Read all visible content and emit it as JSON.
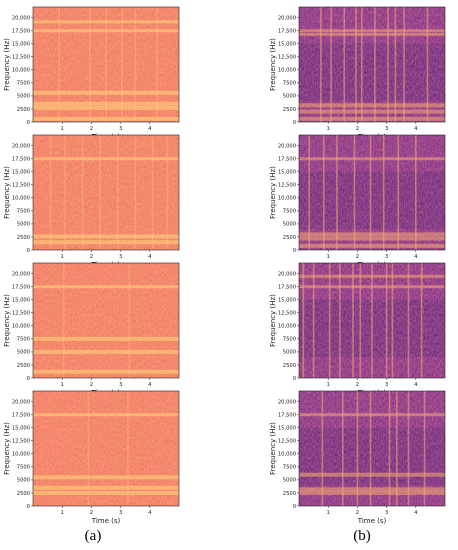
{
  "chart_data": [
    {
      "type": "heatmap",
      "panel": "a1",
      "style": "orange",
      "xlabel": "Time (s)",
      "ylabel": "Frequency (Hz)",
      "x_ticks": [
        1,
        2,
        3,
        4
      ],
      "y_ticks": [
        0,
        2500,
        5000,
        7500,
        10000,
        12500,
        15000,
        17500,
        20000
      ],
      "x_tick_labels": [
        "1",
        "2",
        "3",
        "4"
      ],
      "y_tick_labels": [
        "0",
        "2500",
        "5000",
        "7500",
        "10,000",
        "12,500",
        "15,000",
        "17,500",
        "20,000"
      ],
      "xlim": [
        0,
        5
      ],
      "ylim": [
        0,
        22050
      ],
      "bright_bands_hz": [
        600,
        2700,
        3500,
        5600,
        17500,
        19200
      ],
      "vertical_streaks_s": [
        0.9,
        1.95,
        2.5,
        3.05,
        3.5,
        4.25
      ]
    },
    {
      "type": "heatmap",
      "panel": "b1",
      "style": "purple",
      "xlabel": "Time (s)",
      "ylabel": "Frequency (Hz)",
      "x_ticks": [
        1,
        2,
        3,
        4
      ],
      "y_ticks": [
        0,
        2500,
        5000,
        7500,
        10000,
        12500,
        15000,
        17500,
        20000
      ],
      "x_tick_labels": [
        "1",
        "2",
        "3",
        "4"
      ],
      "y_tick_labels": [
        "0",
        "2500",
        "5000",
        "7500",
        "10,000",
        "12,500",
        "15,000",
        "17,500",
        "20,000"
      ],
      "xlim": [
        0,
        5
      ],
      "ylim": [
        0,
        22050
      ],
      "bright_bands_hz": [
        600,
        2000,
        3200,
        16800,
        17500
      ],
      "vertical_streaks_s": [
        0.75,
        1.1,
        1.55,
        1.95,
        2.15,
        2.6,
        3.05,
        3.3,
        3.6,
        4.4
      ]
    },
    {
      "type": "heatmap",
      "panel": "a2",
      "style": "orange",
      "xlabel": "Time (s)",
      "ylabel": "Frequency (Hz)",
      "x_ticks": [
        1,
        2,
        3,
        4
      ],
      "y_ticks": [
        0,
        2500,
        5000,
        7500,
        10000,
        12500,
        15000,
        17500,
        20000
      ],
      "x_tick_labels": [
        "1",
        "2",
        "3",
        "4"
      ],
      "y_tick_labels": [
        "0",
        "2500",
        "5000",
        "7500",
        "10,000",
        "12,500",
        "15,000",
        "17,500",
        "20,000"
      ],
      "xlim": [
        0,
        5
      ],
      "ylim": [
        0,
        22050
      ],
      "bright_bands_hz": [
        1500,
        2600,
        17500
      ],
      "vertical_streaks_s": [
        0.6,
        1.1,
        1.7,
        2.3,
        2.9,
        3.5,
        4.1,
        4.6
      ]
    },
    {
      "type": "heatmap",
      "panel": "b2",
      "style": "purple",
      "xlabel": "Time (s)",
      "ylabel": "Frequency (Hz)",
      "x_ticks": [
        1,
        2,
        3,
        4
      ],
      "y_ticks": [
        0,
        2500,
        5000,
        7500,
        10000,
        12500,
        15000,
        17500,
        20000
      ],
      "x_tick_labels": [
        "1",
        "2",
        "3",
        "4"
      ],
      "y_tick_labels": [
        "0",
        "2500",
        "5000",
        "7500",
        "10,000",
        "12,500",
        "15,000",
        "17,500",
        "20,000"
      ],
      "xlim": [
        0,
        5
      ],
      "ylim": [
        0,
        22050
      ],
      "bright_bands_hz": [
        800,
        2200,
        3000,
        17500
      ],
      "vertical_streaks_s": [
        0.35,
        0.85,
        1.3,
        1.9,
        2.45,
        2.9,
        3.4,
        4.0
      ]
    },
    {
      "type": "heatmap",
      "panel": "a3",
      "style": "orange",
      "xlabel": "Time (s)",
      "ylabel": "Frequency (Hz)",
      "x_ticks": [
        1,
        2,
        3,
        4
      ],
      "y_ticks": [
        0,
        2500,
        5000,
        7500,
        10000,
        12500,
        15000,
        17500,
        20000
      ],
      "x_tick_labels": [
        "1",
        "2",
        "3",
        "4"
      ],
      "y_tick_labels": [
        "0",
        "2500",
        "5000",
        "7500",
        "10,000",
        "12,500",
        "15,000",
        "17,500",
        "20,000"
      ],
      "xlim": [
        0,
        5
      ],
      "ylim": [
        0,
        22050
      ],
      "bright_bands_hz": [
        1200,
        5000,
        7500,
        17500
      ],
      "vertical_streaks_s": [
        1.05,
        3.3
      ]
    },
    {
      "type": "heatmap",
      "panel": "b3",
      "style": "purple",
      "xlabel": "Time (s)",
      "ylabel": "Frequency (Hz)",
      "x_ticks": [
        1,
        2,
        3,
        4
      ],
      "y_ticks": [
        0,
        2500,
        5000,
        7500,
        10000,
        12500,
        15000,
        17500,
        20000
      ],
      "x_tick_labels": [
        "1",
        "2",
        "3",
        "4"
      ],
      "y_tick_labels": [
        "0",
        "2500",
        "5000",
        "7500",
        "10,000",
        "12,500",
        "15,000",
        "17,500",
        "20,000"
      ],
      "xlim": [
        0,
        5
      ],
      "ylim": [
        0,
        22050
      ],
      "bright_bands_hz": [
        17500,
        19500
      ],
      "vertical_streaks_s": [
        0.15,
        0.5,
        1.05,
        1.4,
        1.85,
        2.1,
        2.5,
        3.0,
        3.2,
        3.75,
        4.2
      ]
    },
    {
      "type": "heatmap",
      "panel": "a4",
      "style": "orange",
      "xlabel": "Time (s)",
      "ylabel": "Frequency (Hz)",
      "x_ticks": [
        1,
        2,
        3,
        4
      ],
      "y_ticks": [
        0,
        2500,
        5000,
        7500,
        10000,
        12500,
        15000,
        17500,
        20000
      ],
      "x_tick_labels": [
        "1",
        "2",
        "3",
        "4"
      ],
      "y_tick_labels": [
        "0",
        "2500",
        "5000",
        "7500",
        "10,000",
        "12,500",
        "15,000",
        "17,500",
        "20,000"
      ],
      "xlim": [
        0,
        5
      ],
      "ylim": [
        0,
        22050
      ],
      "bright_bands_hz": [
        2500,
        3500,
        5500,
        17500
      ],
      "vertical_streaks_s": [
        1.9,
        3.25
      ]
    },
    {
      "type": "heatmap",
      "panel": "b4",
      "style": "purple",
      "xlabel": "Time (s)",
      "ylabel": "Frequency (Hz)",
      "x_ticks": [
        1,
        2,
        3,
        4
      ],
      "y_ticks": [
        0,
        2500,
        5000,
        7500,
        10000,
        12500,
        15000,
        17500,
        20000
      ],
      "x_tick_labels": [
        "1",
        "2",
        "3",
        "4"
      ],
      "y_tick_labels": [
        "0",
        "2500",
        "5000",
        "7500",
        "10,000",
        "12,500",
        "15,000",
        "17,500",
        "20,000"
      ],
      "xlim": [
        0,
        5
      ],
      "ylim": [
        0,
        22050
      ],
      "bright_bands_hz": [
        2500,
        3200,
        6000,
        17500
      ],
      "vertical_streaks_s": [
        0.8,
        1.5,
        2.0,
        2.45,
        3.1,
        3.35,
        3.75,
        4.3
      ]
    }
  ],
  "labels": {
    "left": "(a)",
    "right": "(b)"
  },
  "colors": {
    "orange_base": "#f2785f",
    "orange_bright": "#ffd27a",
    "orange_dark": "#d1516a",
    "purple_base": "#8a2f86",
    "purple_bright": "#f7ab6f",
    "purple_dark": "#4d1a72"
  }
}
